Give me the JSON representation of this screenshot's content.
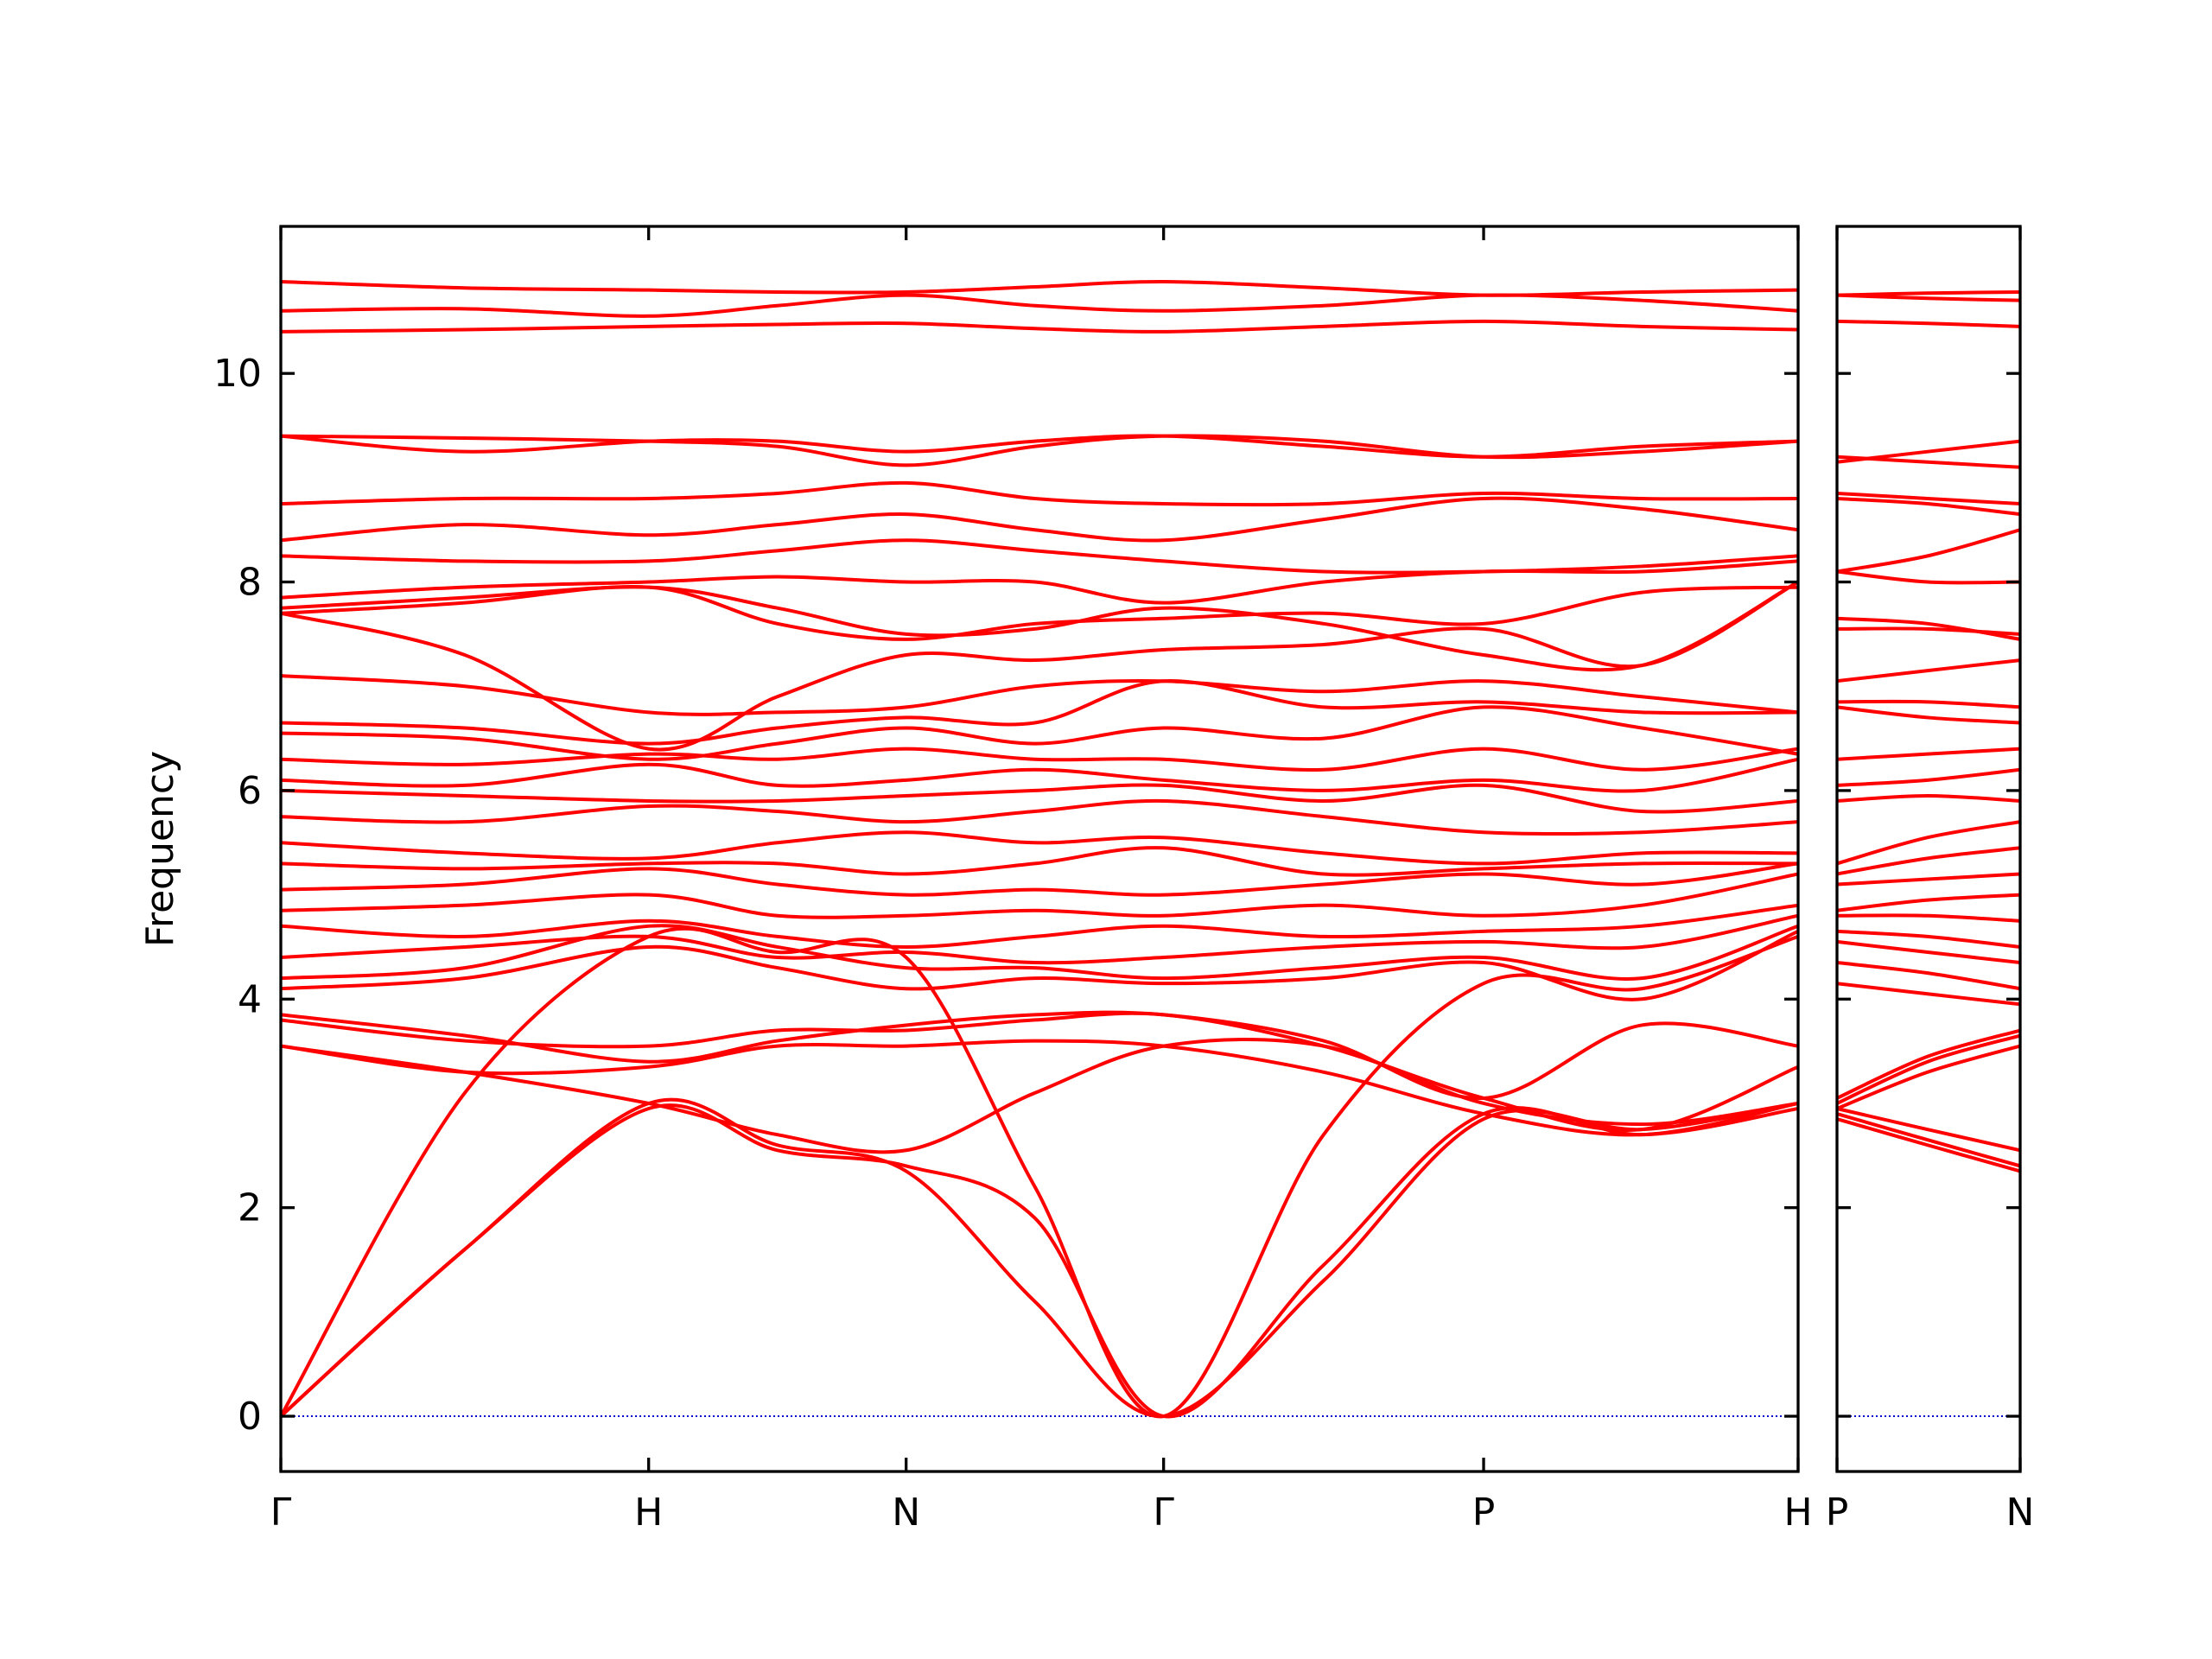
{
  "chart_data": [
    {
      "type": "line",
      "y_label": "Frequency",
      "color": "#ff0000",
      "show_ytick_labels": true,
      "xlim": [
        0,
        4.125
      ],
      "ylim": [
        -0.53,
        11.41
      ],
      "yticks": [
        0,
        2,
        4,
        6,
        8,
        10
      ],
      "xticks": [
        {
          "value": 0,
          "label": "Γ"
        },
        {
          "value": 1,
          "label": "H"
        },
        {
          "value": 1.7,
          "label": "N"
        },
        {
          "value": 2.4,
          "label": "Γ"
        },
        {
          "value": 3.27,
          "label": "P"
        },
        {
          "value": 4.125,
          "label": "H"
        }
      ],
      "zero_line": {
        "y": 0,
        "color": "#0000cd"
      },
      "x": [
        0,
        0.5,
        1,
        1.35,
        1.7,
        2.05,
        2.4,
        2.835,
        3.27,
        3.7,
        4.125
      ],
      "series": [
        {
          "values": [
            0,
            1.6,
            3.0,
            2.6,
            2.35,
            1.1,
            0,
            1.3,
            2.85,
            2.75,
            3.0
          ]
        },
        {
          "values": [
            0,
            3.1,
            4.6,
            4.45,
            4.4,
            2.2,
            0,
            2.7,
            4.15,
            4.1,
            4.6
          ]
        },
        {
          "values": [
            0,
            1.6,
            2.95,
            2.55,
            2.4,
            1.9,
            0,
            1.45,
            2.9,
            2.7,
            2.95
          ]
        },
        {
          "values": [
            3.55,
            3.3,
            3.0,
            2.7,
            2.55,
            3.1,
            3.55,
            3.55,
            3.0,
            2.8,
            3.0
          ]
        },
        {
          "values": [
            3.55,
            3.3,
            3.35,
            3.55,
            3.55,
            3.6,
            3.55,
            3.3,
            2.9,
            2.7,
            3.0
          ]
        },
        {
          "values": [
            3.8,
            3.6,
            3.55,
            3.7,
            3.7,
            3.8,
            3.85,
            3.55,
            3.05,
            2.75,
            3.35
          ]
        },
        {
          "values": [
            3.85,
            3.65,
            3.4,
            3.6,
            3.75,
            3.85,
            3.85,
            3.6,
            3.05,
            3.75,
            3.55
          ]
        },
        {
          "values": [
            4.1,
            4.2,
            4.5,
            4.3,
            4.1,
            4.2,
            4.15,
            4.2,
            4.35,
            4.0,
            4.65
          ]
        },
        {
          "values": [
            4.2,
            4.3,
            4.7,
            4.5,
            4.3,
            4.3,
            4.2,
            4.3,
            4.4,
            4.2,
            4.7
          ]
        },
        {
          "values": [
            4.4,
            4.5,
            4.6,
            4.4,
            4.45,
            4.35,
            4.4,
            4.5,
            4.55,
            4.5,
            4.8
          ]
        },
        {
          "values": [
            4.7,
            4.6,
            4.75,
            4.6,
            4.5,
            4.6,
            4.7,
            4.6,
            4.65,
            4.7,
            4.9
          ]
        },
        {
          "values": [
            4.85,
            4.9,
            5.0,
            4.8,
            4.8,
            4.85,
            4.8,
            4.9,
            4.8,
            4.9,
            5.2
          ]
        },
        {
          "values": [
            5.05,
            5.1,
            5.25,
            5.1,
            5.0,
            5.05,
            5.0,
            5.1,
            5.2,
            5.1,
            5.3
          ]
        },
        {
          "values": [
            5.3,
            5.25,
            5.3,
            5.3,
            5.2,
            5.3,
            5.45,
            5.2,
            5.25,
            5.3,
            5.3
          ]
        },
        {
          "values": [
            5.5,
            5.4,
            5.35,
            5.5,
            5.6,
            5.5,
            5.55,
            5.4,
            5.3,
            5.4,
            5.4
          ]
        },
        {
          "values": [
            5.75,
            5.7,
            5.85,
            5.8,
            5.7,
            5.8,
            5.9,
            5.75,
            5.6,
            5.6,
            5.7
          ]
        },
        {
          "values": [
            6.0,
            5.95,
            5.9,
            5.9,
            5.95,
            6.0,
            6.05,
            5.9,
            6.05,
            5.8,
            5.9
          ]
        },
        {
          "values": [
            6.1,
            6.05,
            6.25,
            6.05,
            6.1,
            6.2,
            6.1,
            6.0,
            6.1,
            6.0,
            6.3
          ]
        },
        {
          "values": [
            6.3,
            6.25,
            6.35,
            6.3,
            6.4,
            6.3,
            6.3,
            6.2,
            6.4,
            6.2,
            6.4
          ]
        },
        {
          "values": [
            6.55,
            6.5,
            6.3,
            6.45,
            6.6,
            6.45,
            6.6,
            6.5,
            6.8,
            6.6,
            6.35
          ]
        },
        {
          "values": [
            6.65,
            6.6,
            6.45,
            6.6,
            6.7,
            6.65,
            7.05,
            6.8,
            6.85,
            6.75,
            6.75
          ]
        },
        {
          "values": [
            7.1,
            7.0,
            6.75,
            6.75,
            6.8,
            7.0,
            7.05,
            6.95,
            7.05,
            6.9,
            6.75
          ]
        },
        {
          "values": [
            7.7,
            7.3,
            6.4,
            6.9,
            7.3,
            7.25,
            7.35,
            7.4,
            7.55,
            7.2,
            8.0
          ]
        },
        {
          "values": [
            7.7,
            7.8,
            7.95,
            7.6,
            7.45,
            7.6,
            7.65,
            7.7,
            7.6,
            7.9,
            7.95
          ]
        },
        {
          "values": [
            7.75,
            7.85,
            7.95,
            7.75,
            7.5,
            7.55,
            7.75,
            7.6,
            7.3,
            7.2,
            8.0
          ]
        },
        {
          "values": [
            7.85,
            7.95,
            8.0,
            8.05,
            8.0,
            8.0,
            7.8,
            8.0,
            8.1,
            8.1,
            8.2
          ]
        },
        {
          "values": [
            8.25,
            8.2,
            8.2,
            8.3,
            8.4,
            8.3,
            8.2,
            8.1,
            8.1,
            8.15,
            8.25
          ]
        },
        {
          "values": [
            8.4,
            8.55,
            8.45,
            8.55,
            8.65,
            8.5,
            8.4,
            8.6,
            8.8,
            8.7,
            8.5
          ]
        },
        {
          "values": [
            8.75,
            8.8,
            8.8,
            8.85,
            8.95,
            8.8,
            8.75,
            8.75,
            8.85,
            8.8,
            8.8
          ]
        },
        {
          "values": [
            9.4,
            9.25,
            9.35,
            9.35,
            9.25,
            9.35,
            9.4,
            9.3,
            9.2,
            9.3,
            9.35
          ]
        },
        {
          "values": [
            9.4,
            9.38,
            9.35,
            9.3,
            9.12,
            9.3,
            9.4,
            9.35,
            9.2,
            9.25,
            9.35
          ]
        },
        {
          "values": [
            10.4,
            10.42,
            10.45,
            10.47,
            10.48,
            10.43,
            10.4,
            10.45,
            10.5,
            10.45,
            10.42
          ]
        },
        {
          "values": [
            10.6,
            10.62,
            10.55,
            10.65,
            10.75,
            10.65,
            10.6,
            10.65,
            10.75,
            10.7,
            10.6
          ]
        },
        {
          "values": [
            10.88,
            10.82,
            10.8,
            10.78,
            10.78,
            10.83,
            10.88,
            10.82,
            10.75,
            10.78,
            10.8
          ]
        }
      ]
    },
    {
      "type": "line",
      "color": "#ff0000",
      "show_ytick_labels": false,
      "xlim": [
        4.125,
        4.62
      ],
      "ylim": [
        -0.53,
        11.41
      ],
      "yticks": [
        0,
        2,
        4,
        6,
        8,
        10
      ],
      "xticks": [
        {
          "value": 4.125,
          "label": "P"
        },
        {
          "value": 4.62,
          "label": "N"
        }
      ],
      "zero_line": {
        "y": 0,
        "color": "#0000cd"
      },
      "x": [
        4.125,
        4.37,
        4.62
      ],
      "series": [
        {
          "values": [
            2.85,
            2.6,
            2.35
          ]
        },
        {
          "values": [
            2.9,
            2.65,
            2.4
          ]
        },
        {
          "values": [
            2.95,
            2.75,
            2.55
          ]
        },
        {
          "values": [
            2.95,
            3.3,
            3.55
          ]
        },
        {
          "values": [
            3.0,
            3.4,
            3.65
          ]
        },
        {
          "values": [
            3.05,
            3.45,
            3.7
          ]
        },
        {
          "values": [
            4.15,
            4.05,
            3.95
          ]
        },
        {
          "values": [
            4.35,
            4.25,
            4.1
          ]
        },
        {
          "values": [
            4.55,
            4.45,
            4.35
          ]
        },
        {
          "values": [
            4.65,
            4.6,
            4.5
          ]
        },
        {
          "values": [
            4.8,
            4.8,
            4.75
          ]
        },
        {
          "values": [
            4.85,
            4.95,
            5.0
          ]
        },
        {
          "values": [
            5.1,
            5.15,
            5.2
          ]
        },
        {
          "values": [
            5.2,
            5.35,
            5.45
          ]
        },
        {
          "values": [
            5.3,
            5.55,
            5.7
          ]
        },
        {
          "values": [
            5.9,
            5.95,
            5.9
          ]
        },
        {
          "values": [
            6.05,
            6.1,
            6.2
          ]
        },
        {
          "values": [
            6.3,
            6.35,
            6.4
          ]
        },
        {
          "values": [
            6.8,
            6.7,
            6.65
          ]
        },
        {
          "values": [
            6.85,
            6.85,
            6.8
          ]
        },
        {
          "values": [
            7.05,
            7.15,
            7.25
          ]
        },
        {
          "values": [
            7.55,
            7.55,
            7.5
          ]
        },
        {
          "values": [
            7.65,
            7.6,
            7.45
          ]
        },
        {
          "values": [
            8.1,
            8.25,
            8.5
          ]
        },
        {
          "values": [
            8.1,
            8.0,
            8.0
          ]
        },
        {
          "values": [
            8.8,
            8.75,
            8.65
          ]
        },
        {
          "values": [
            8.85,
            8.8,
            8.75
          ]
        },
        {
          "values": [
            9.15,
            9.25,
            9.35
          ]
        },
        {
          "values": [
            9.2,
            9.15,
            9.1
          ]
        },
        {
          "values": [
            10.5,
            10.48,
            10.45
          ]
        },
        {
          "values": [
            10.75,
            10.72,
            10.7
          ]
        },
        {
          "values": [
            10.75,
            10.77,
            10.78
          ]
        }
      ]
    }
  ]
}
